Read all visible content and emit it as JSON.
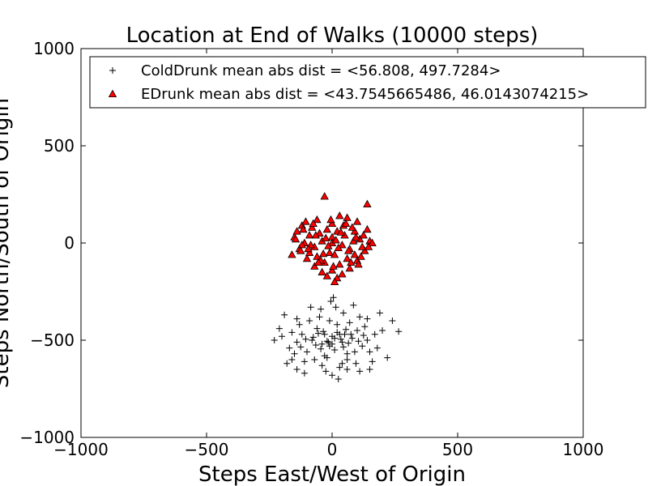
{
  "chart_data": {
    "type": "scatter",
    "title": "Location at End of Walks (10000 steps)",
    "xlabel": "Steps East/West of Origin",
    "ylabel": "Steps North/South of Origin",
    "xlim": [
      -1000,
      1000
    ],
    "ylim": [
      -1000,
      1000
    ],
    "xticks": [
      -1000,
      -500,
      0,
      500,
      1000
    ],
    "yticks": [
      -1000,
      -500,
      0,
      500,
      1000
    ],
    "xtick_labels": [
      "−1000",
      "−500",
      "0",
      "500",
      "1000"
    ],
    "ytick_labels": [
      "−1000",
      "−500",
      "0",
      "500",
      "1000"
    ],
    "grid": false,
    "legend_position": "top-right",
    "series": [
      {
        "name": "ColdDrunk mean abs dist = <56.808, 497.7284>",
        "marker": "plus",
        "color": "#000000",
        "points": [
          [
            -120,
            -470
          ],
          [
            -80,
            -500
          ],
          [
            -40,
            -520
          ],
          [
            0,
            -480
          ],
          [
            40,
            -510
          ],
          [
            80,
            -490
          ],
          [
            120,
            -530
          ],
          [
            -100,
            -560
          ],
          [
            -60,
            -440
          ],
          [
            -20,
            -590
          ],
          [
            20,
            -420
          ],
          [
            60,
            -600
          ],
          [
            100,
            -450
          ],
          [
            140,
            -500
          ],
          [
            -140,
            -510
          ],
          [
            -160,
            -460
          ],
          [
            -30,
            -470
          ],
          [
            10,
            -550
          ],
          [
            50,
            -470
          ],
          [
            90,
            -560
          ],
          [
            -70,
            -600
          ],
          [
            30,
            -640
          ],
          [
            -10,
            -400
          ],
          [
            70,
            -410
          ],
          [
            -50,
            -380
          ],
          [
            110,
            -380
          ],
          [
            -110,
            -610
          ],
          [
            150,
            -560
          ],
          [
            -150,
            -570
          ],
          [
            0,
            -680
          ],
          [
            25,
            -700
          ],
          [
            -25,
            -660
          ],
          [
            60,
            -650
          ],
          [
            -90,
            -400
          ],
          [
            95,
            -620
          ],
          [
            -130,
            -420
          ],
          [
            130,
            -430
          ],
          [
            170,
            -470
          ],
          [
            -170,
            -540
          ],
          [
            200,
            -450
          ],
          [
            -200,
            -480
          ],
          [
            240,
            -400
          ],
          [
            265,
            -455
          ],
          [
            220,
            -590
          ],
          [
            190,
            -360
          ],
          [
            -190,
            -370
          ],
          [
            -210,
            -440
          ],
          [
            -180,
            -620
          ],
          [
            180,
            -540
          ],
          [
            -230,
            -500
          ],
          [
            15,
            -330
          ],
          [
            -5,
            -300
          ],
          [
            45,
            -360
          ],
          [
            -45,
            -340
          ],
          [
            85,
            -320
          ],
          [
            -85,
            -330
          ],
          [
            5,
            -280
          ],
          [
            -15,
            -510
          ],
          [
            35,
            -495
          ],
          [
            -35,
            -455
          ],
          [
            65,
            -515
          ],
          [
            -65,
            -525
          ],
          [
            75,
            -470
          ],
          [
            -75,
            -485
          ],
          [
            45,
            -535
          ],
          [
            -45,
            -545
          ],
          [
            105,
            -505
          ],
          [
            -105,
            -495
          ],
          [
            125,
            -475
          ],
          [
            -125,
            -535
          ],
          [
            55,
            -445
          ],
          [
            -55,
            -465
          ],
          [
            20,
            -460
          ],
          [
            -20,
            -505
          ],
          [
            0,
            -520
          ],
          [
            10,
            -490
          ],
          [
            -10,
            -530
          ],
          [
            30,
            -470
          ],
          [
            -30,
            -580
          ],
          [
            60,
            -570
          ],
          [
            160,
            -610
          ],
          [
            -160,
            -600
          ],
          [
            150,
            -650
          ],
          [
            -140,
            -650
          ],
          [
            110,
            -660
          ],
          [
            -110,
            -670
          ],
          [
            140,
            -390
          ],
          [
            -140,
            -390
          ],
          [
            40,
            -620
          ],
          [
            -40,
            -630
          ]
        ]
      },
      {
        "name": "EDrunk mean abs dist = <43.7545665486, 46.0143074215>",
        "marker": "triangle",
        "color": "#ff0000",
        "points": [
          [
            -30,
            240
          ],
          [
            140,
            200
          ],
          [
            -120,
            90
          ],
          [
            100,
            110
          ],
          [
            60,
            130
          ],
          [
            -60,
            120
          ],
          [
            0,
            100
          ],
          [
            30,
            140
          ],
          [
            -90,
            40
          ],
          [
            90,
            60
          ],
          [
            -150,
            30
          ],
          [
            150,
            10
          ],
          [
            -160,
            -60
          ],
          [
            160,
            0
          ],
          [
            -130,
            -30
          ],
          [
            130,
            -40
          ],
          [
            -100,
            -80
          ],
          [
            100,
            -90
          ],
          [
            -70,
            -120
          ],
          [
            70,
            -130
          ],
          [
            -40,
            -150
          ],
          [
            40,
            -160
          ],
          [
            0,
            -140
          ],
          [
            20,
            -180
          ],
          [
            -20,
            -170
          ],
          [
            -110,
            0
          ],
          [
            110,
            20
          ],
          [
            -80,
            80
          ],
          [
            80,
            80
          ],
          [
            -50,
            50
          ],
          [
            50,
            40
          ],
          [
            -20,
            70
          ],
          [
            20,
            60
          ],
          [
            0,
            30
          ],
          [
            -40,
            10
          ],
          [
            40,
            -10
          ],
          [
            -70,
            -20
          ],
          [
            70,
            -30
          ],
          [
            -10,
            -50
          ],
          [
            10,
            -60
          ],
          [
            -60,
            -70
          ],
          [
            60,
            -80
          ],
          [
            -30,
            -100
          ],
          [
            30,
            -110
          ],
          [
            -90,
            -50
          ],
          [
            90,
            -60
          ],
          [
            -120,
            -10
          ],
          [
            120,
            -20
          ],
          [
            -140,
            60
          ],
          [
            140,
            70
          ],
          [
            0,
            0
          ],
          [
            15,
            15
          ],
          [
            -15,
            -15
          ],
          [
            25,
            -25
          ],
          [
            -25,
            25
          ],
          [
            45,
            90
          ],
          [
            -45,
            -90
          ],
          [
            85,
            10
          ],
          [
            -85,
            -10
          ],
          [
            115,
            -70
          ],
          [
            -115,
            70
          ],
          [
            65,
            -40
          ],
          [
            -65,
            40
          ],
          [
            35,
            55
          ],
          [
            -35,
            -55
          ],
          [
            55,
            100
          ],
          [
            -55,
            -100
          ],
          [
            95,
            30
          ],
          [
            -95,
            -30
          ],
          [
            5,
            -120
          ],
          [
            -5,
            120
          ],
          [
            75,
            -100
          ],
          [
            -75,
            100
          ],
          [
            125,
            40
          ],
          [
            -125,
            -40
          ],
          [
            145,
            -20
          ],
          [
            -145,
            20
          ],
          [
            105,
            -110
          ],
          [
            -105,
            110
          ],
          [
            10,
            -200
          ]
        ]
      }
    ]
  }
}
